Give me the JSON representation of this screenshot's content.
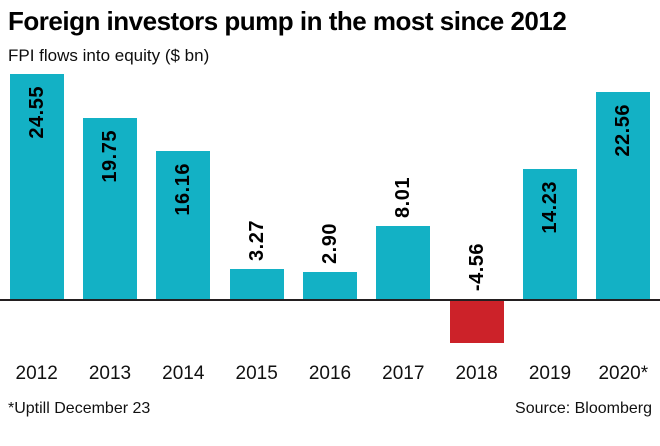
{
  "chart_data": {
    "type": "bar",
    "title": "Foreign investors pump in the most since 2012",
    "subtitle": "FPI flows into equity ($ bn)",
    "categories": [
      "2012",
      "2013",
      "2014",
      "2015",
      "2016",
      "2017",
      "2018",
      "2019",
      "2020*"
    ],
    "values": [
      24.55,
      19.75,
      16.16,
      3.27,
      2.9,
      8.01,
      -4.56,
      14.23,
      22.56
    ],
    "value_labels": [
      "24.55",
      "19.75",
      "16.16",
      "3.27",
      "2.90",
      "8.01",
      "-4.56",
      "14.23",
      "22.56"
    ],
    "xlabel": "",
    "ylabel": "FPI flows into equity ($ bn)",
    "ylim": [
      -5,
      25
    ],
    "grid": false,
    "legend": "none",
    "bar_color_positive": "#13b1c5",
    "bar_color_negative": "#cc2229",
    "axis_color": "#231f20",
    "note": "*Uptill December 23",
    "source_label": "Source: Bloomberg"
  }
}
